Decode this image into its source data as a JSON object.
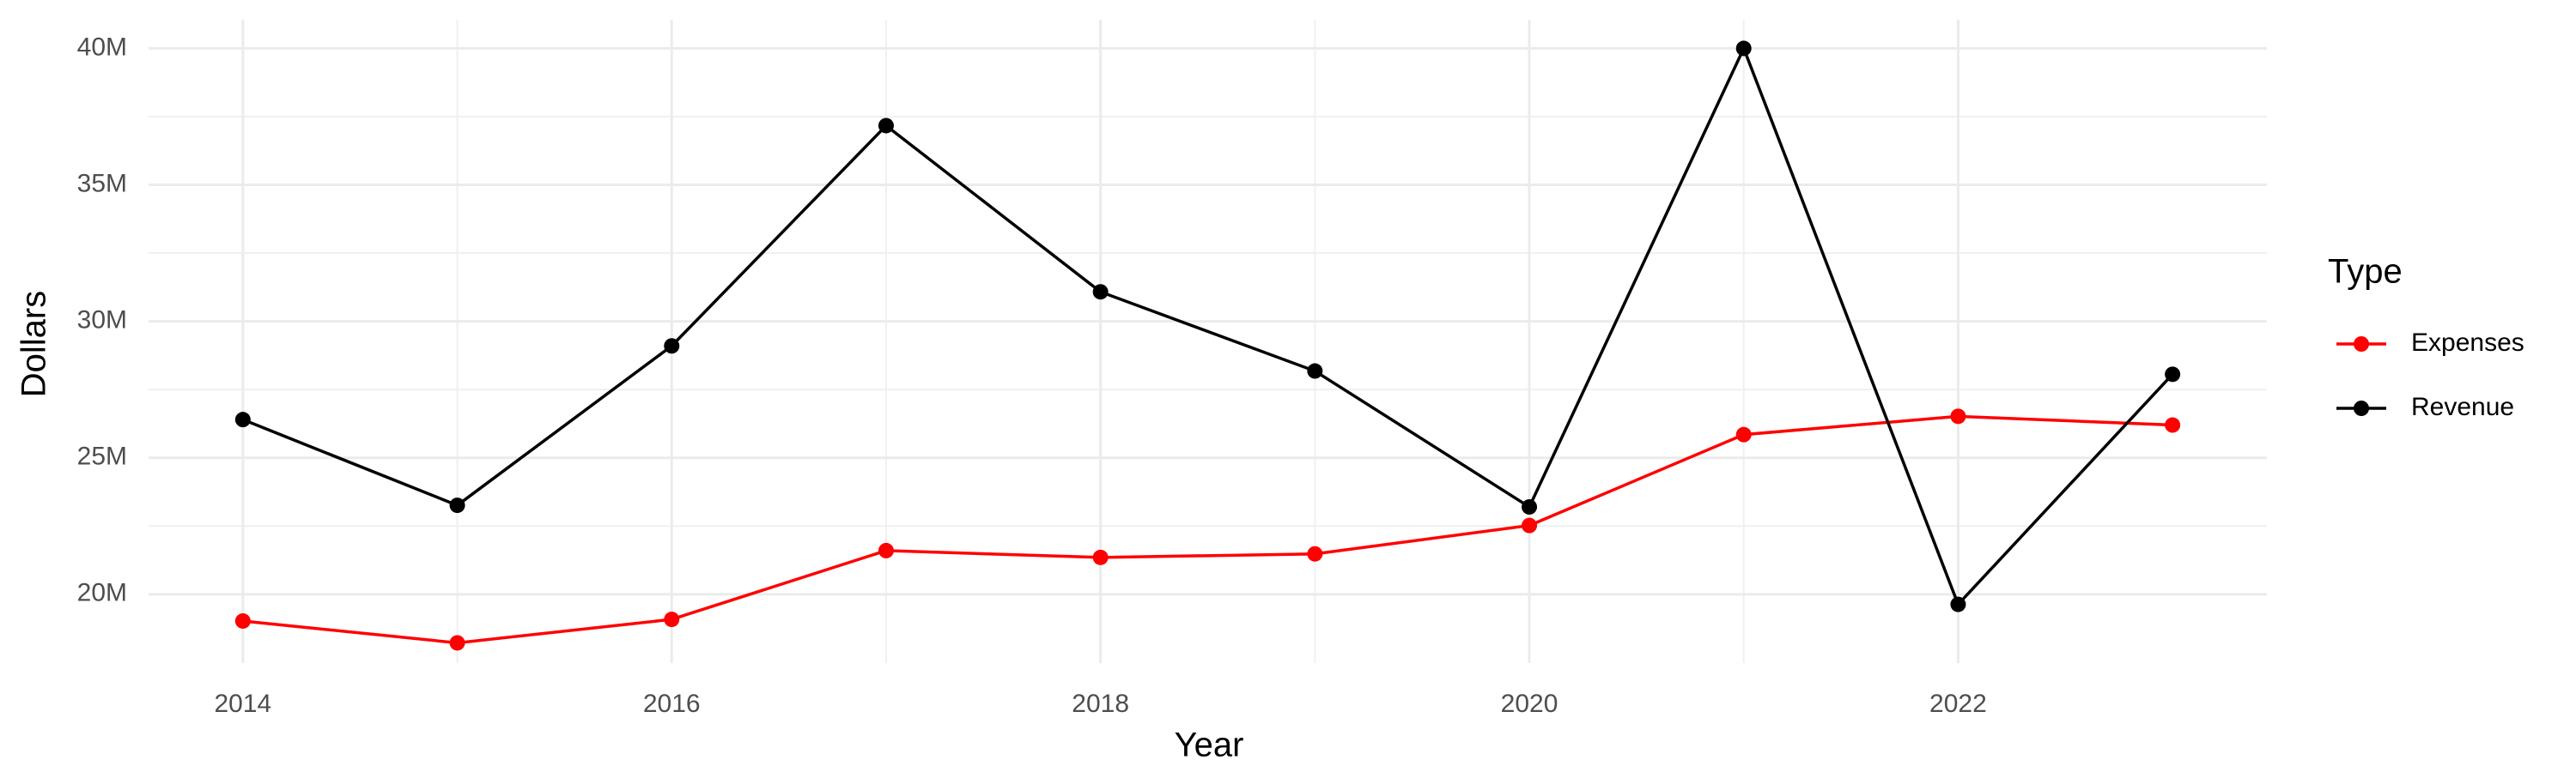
{
  "chart_data": {
    "type": "line",
    "x_label": "Year",
    "y_label": "Dollars",
    "legend_title": "Type",
    "legend_position": "right",
    "grid": true,
    "minor_grid": true,
    "x": [
      2014,
      2015,
      2016,
      2017,
      2018,
      2019,
      2020,
      2021,
      2022,
      2023
    ],
    "series": [
      {
        "name": "Expenses",
        "color": "#ff0000",
        "values": [
          19020000,
          18220000,
          19080000,
          21600000,
          21350000,
          21480000,
          22520000,
          25850000,
          26520000,
          26200000
        ]
      },
      {
        "name": "Revenue",
        "color": "#000000",
        "values": [
          26400000,
          23260000,
          29100000,
          37170000,
          31080000,
          28180000,
          23200000,
          40000000,
          19630000,
          28060000
        ]
      }
    ],
    "xlim": [
      2013.56,
      2023.44
    ],
    "xticks": [
      2014,
      2016,
      2018,
      2020,
      2022
    ],
    "ylim": [
      17480000,
      41050000
    ],
    "yticks": [
      {
        "value": 20000000,
        "label": "20M"
      },
      {
        "value": 25000000,
        "label": "25M"
      },
      {
        "value": 30000000,
        "label": "30M"
      },
      {
        "value": 35000000,
        "label": "35M"
      },
      {
        "value": 40000000,
        "label": "40M"
      }
    ]
  }
}
